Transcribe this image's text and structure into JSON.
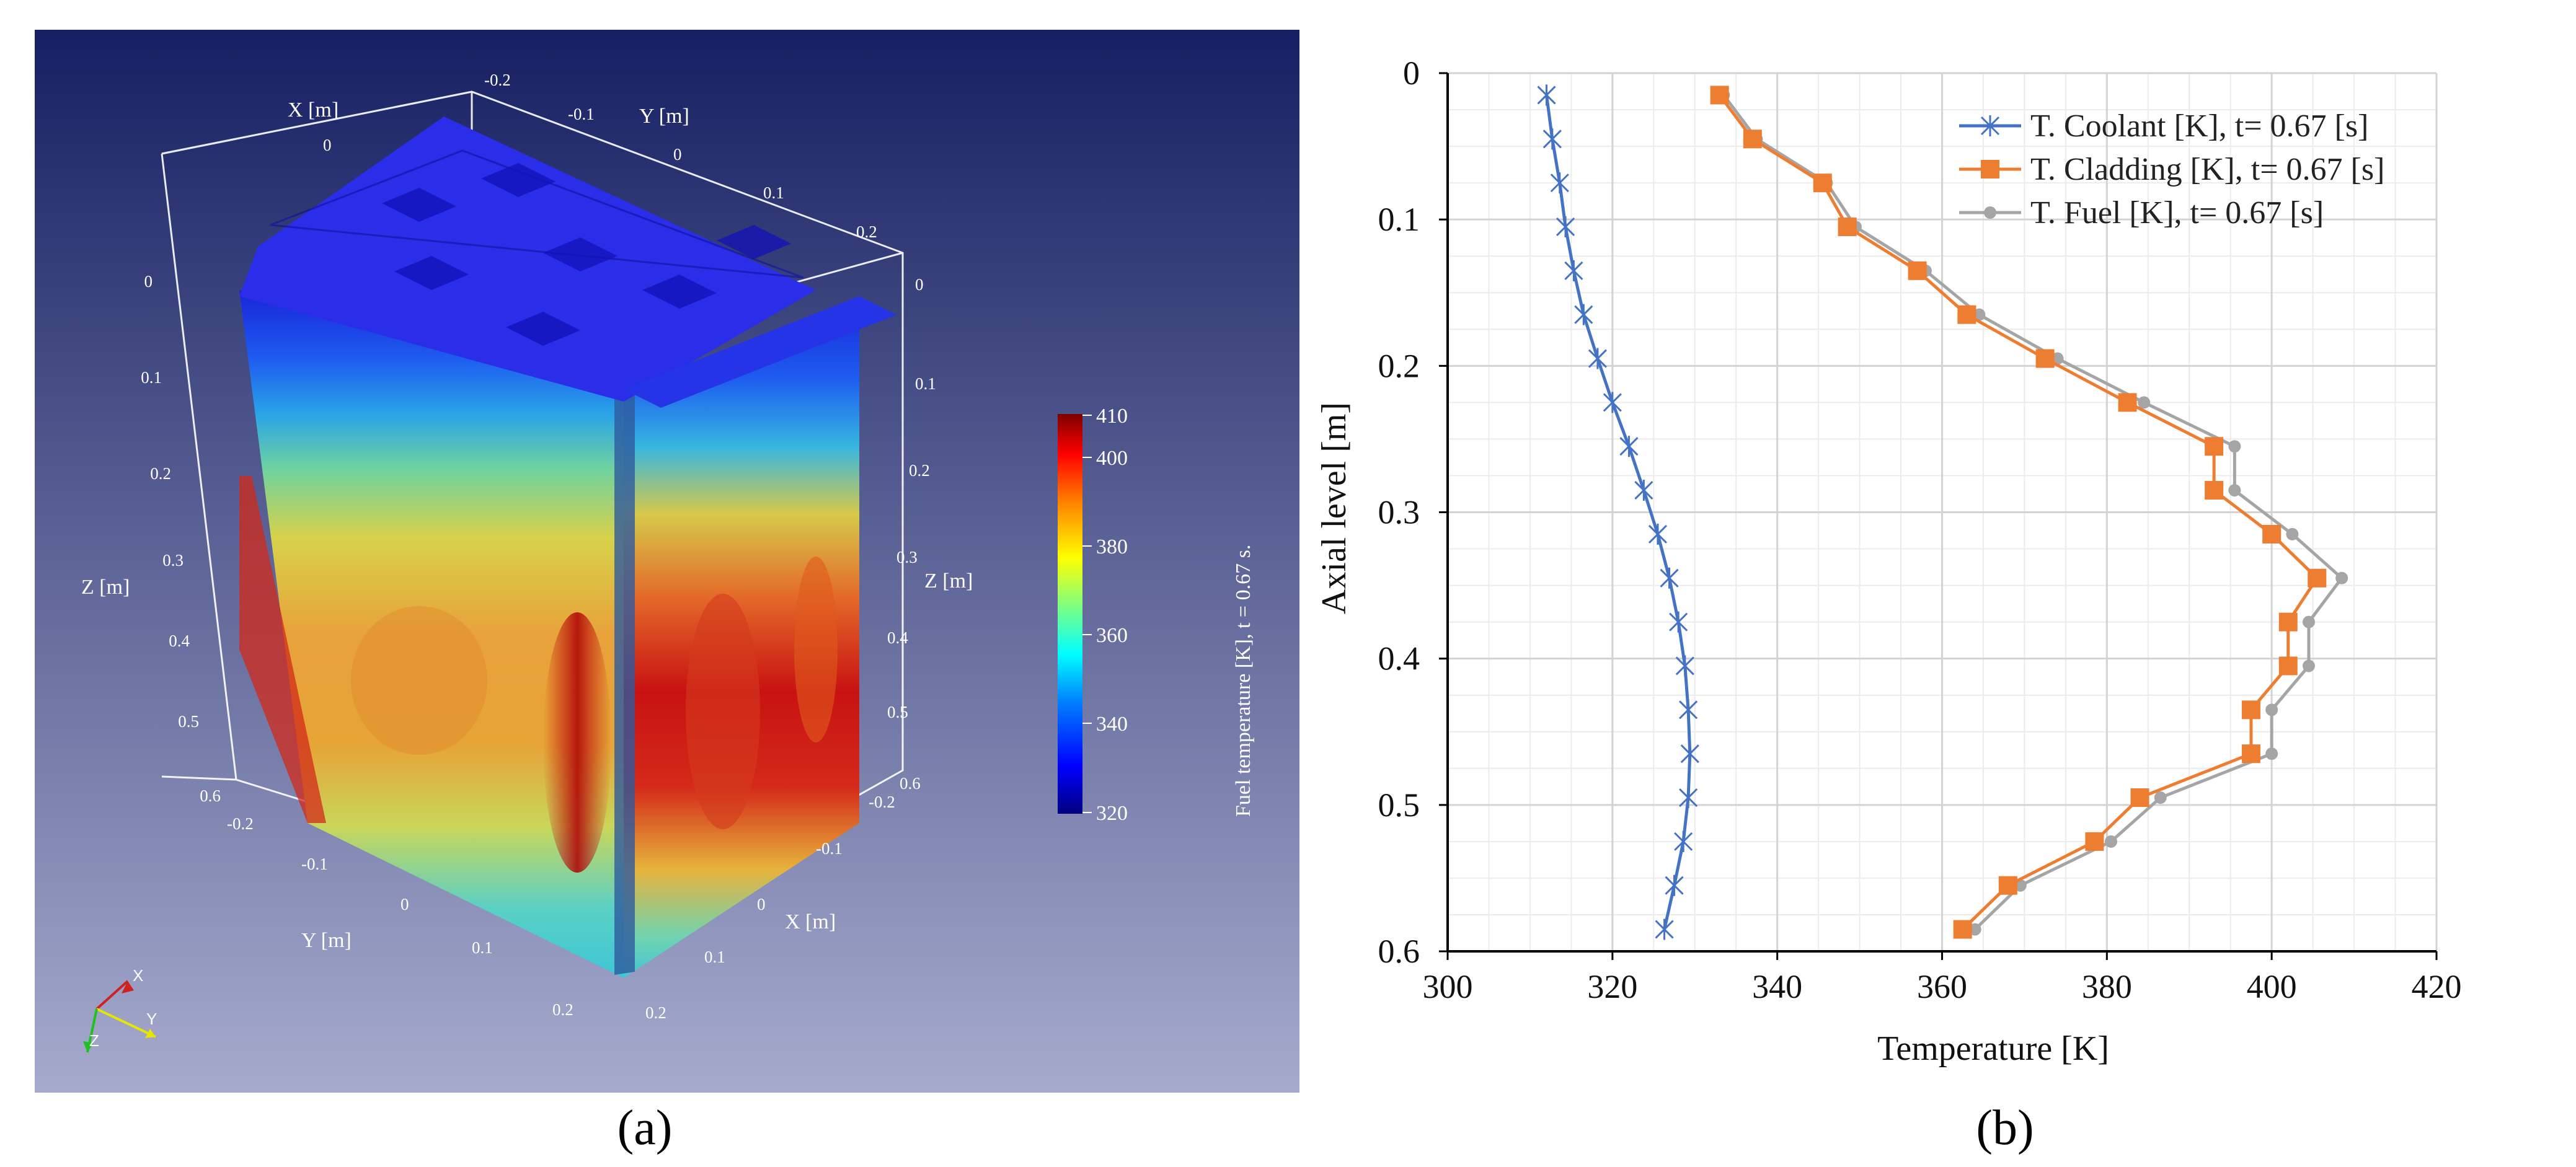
{
  "panel_a": {
    "caption": "(a)",
    "axis_x_label": "X [m]",
    "axis_y_label": "Y [m]",
    "axis_z_label": "Z [m]",
    "x_ticks": [
      "-0.2",
      "-0.1",
      "0",
      "0.1",
      "0.2"
    ],
    "y_ticks": [
      "-0.2",
      "-0.1",
      "0",
      "0.1",
      "0.2"
    ],
    "z_ticks": [
      "0",
      "0.1",
      "0.2",
      "0.3",
      "0.4",
      "0.5",
      "0.6"
    ],
    "top_x_ticks": [
      "0"
    ],
    "top_y_ticks": [
      "-0.2",
      "-0.1",
      "0",
      "0.1",
      "0.2"
    ],
    "colorbar": {
      "title": "Fuel temperature [K], t = 0.67 s.",
      "min": 320,
      "max": 410,
      "ticks": [
        "410",
        "400",
        "380",
        "360",
        "340",
        "320"
      ],
      "colors": [
        "#00007f",
        "#0000ff",
        "#0080ff",
        "#00ffff",
        "#80ff80",
        "#ffff00",
        "#ff8000",
        "#ff0000",
        "#7f0000"
      ]
    },
    "triad": {
      "x": "X",
      "y": "Y",
      "z": "Z"
    },
    "background_top": "#161f62",
    "background_bottom": "#a6abcd"
  },
  "chart_data": {
    "type": "line",
    "caption": "(b)",
    "xlabel": "Temperature [K]",
    "ylabel": "Axial level  [m]",
    "xlim": [
      300,
      420
    ],
    "ylim": [
      0,
      0.6
    ],
    "y_inverted": true,
    "x_ticks": [
      300,
      320,
      340,
      360,
      380,
      400,
      420
    ],
    "y_ticks": [
      0,
      0.1,
      0.2,
      0.3,
      0.4,
      0.5,
      0.6
    ],
    "grid": true,
    "legend_position": "top-right",
    "series": [
      {
        "name": "T. Coolant [K], t= 0.67 [s]",
        "color": "#4472c4",
        "marker": "star",
        "points": [
          [
            312.0,
            0.015
          ],
          [
            312.7,
            0.045
          ],
          [
            313.6,
            0.075
          ],
          [
            314.3,
            0.105
          ],
          [
            315.3,
            0.135
          ],
          [
            316.5,
            0.165
          ],
          [
            318.2,
            0.195
          ],
          [
            320.0,
            0.225
          ],
          [
            322.0,
            0.255
          ],
          [
            323.8,
            0.285
          ],
          [
            325.5,
            0.315
          ],
          [
            326.9,
            0.345
          ],
          [
            328.0,
            0.375
          ],
          [
            328.8,
            0.405
          ],
          [
            329.2,
            0.435
          ],
          [
            329.4,
            0.465
          ],
          [
            329.2,
            0.495
          ],
          [
            328.6,
            0.525
          ],
          [
            327.5,
            0.555
          ],
          [
            326.3,
            0.585
          ]
        ]
      },
      {
        "name": "T. Cladding [K], t= 0.67 [s]",
        "color": "#ed7d31",
        "marker": "square",
        "points": [
          [
            333.0,
            0.015
          ],
          [
            337.0,
            0.045
          ],
          [
            345.5,
            0.075
          ],
          [
            348.5,
            0.105
          ],
          [
            357.0,
            0.135
          ],
          [
            363.0,
            0.165
          ],
          [
            372.5,
            0.195
          ],
          [
            382.5,
            0.225
          ],
          [
            393.0,
            0.255
          ],
          [
            393.0,
            0.285
          ],
          [
            400.0,
            0.315
          ],
          [
            405.5,
            0.345
          ],
          [
            402.0,
            0.375
          ],
          [
            402.0,
            0.405
          ],
          [
            397.5,
            0.435
          ],
          [
            397.5,
            0.465
          ],
          [
            384.0,
            0.495
          ],
          [
            378.5,
            0.525
          ],
          [
            368.0,
            0.555
          ],
          [
            362.5,
            0.585
          ]
        ]
      },
      {
        "name": "T. Fuel [K], t= 0.67 [s]",
        "color": "#a5a5a5",
        "marker": "circle",
        "points": [
          [
            333.5,
            0.015
          ],
          [
            337.5,
            0.045
          ],
          [
            346.0,
            0.075
          ],
          [
            349.5,
            0.105
          ],
          [
            358.0,
            0.135
          ],
          [
            364.5,
            0.165
          ],
          [
            374.0,
            0.195
          ],
          [
            384.5,
            0.225
          ],
          [
            395.5,
            0.255
          ],
          [
            395.5,
            0.285
          ],
          [
            402.5,
            0.315
          ],
          [
            408.5,
            0.345
          ],
          [
            404.5,
            0.375
          ],
          [
            404.5,
            0.405
          ],
          [
            400.0,
            0.435
          ],
          [
            400.0,
            0.465
          ],
          [
            386.5,
            0.495
          ],
          [
            380.5,
            0.525
          ],
          [
            369.5,
            0.555
          ],
          [
            364.0,
            0.585
          ]
        ]
      }
    ]
  }
}
